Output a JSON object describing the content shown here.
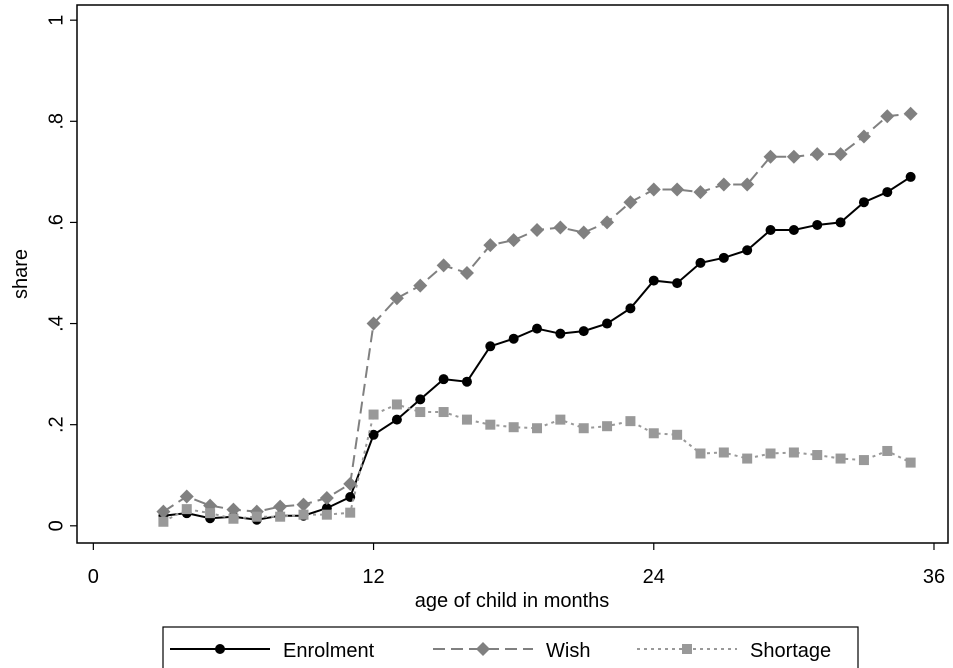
{
  "chart_data": {
    "type": "line",
    "x_label": "age of child in months",
    "y_label": "share",
    "x": [
      3,
      4,
      5,
      6,
      7,
      8,
      9,
      10,
      11,
      12,
      13,
      14,
      15,
      16,
      17,
      18,
      19,
      20,
      21,
      22,
      23,
      24,
      25,
      26,
      27,
      28,
      29,
      30,
      31,
      32,
      33,
      34,
      35
    ],
    "series": [
      {
        "name": "Enrolment",
        "color": "#000000",
        "dash": "solid",
        "marker": "circle",
        "values": [
          0.02,
          0.025,
          0.015,
          0.018,
          0.012,
          0.02,
          0.02,
          0.035,
          0.057,
          0.18,
          0.21,
          0.25,
          0.29,
          0.285,
          0.355,
          0.37,
          0.39,
          0.38,
          0.385,
          0.4,
          0.43,
          0.485,
          0.48,
          0.52,
          0.53,
          0.545,
          0.585,
          0.585,
          0.595,
          0.6,
          0.64,
          0.66,
          0.69
        ]
      },
      {
        "name": "Wish",
        "color": "#808080",
        "dash": "dashed",
        "marker": "diamond",
        "values": [
          0.028,
          0.058,
          0.04,
          0.032,
          0.028,
          0.038,
          0.042,
          0.055,
          0.083,
          0.4,
          0.45,
          0.475,
          0.515,
          0.5,
          0.555,
          0.565,
          0.585,
          0.59,
          0.58,
          0.6,
          0.64,
          0.665,
          0.665,
          0.66,
          0.675,
          0.675,
          0.73,
          0.73,
          0.735,
          0.735,
          0.77,
          0.81,
          0.815
        ]
      },
      {
        "name": "Shortage",
        "color": "#999999",
        "dash": "dotted",
        "marker": "square",
        "values": [
          0.008,
          0.033,
          0.025,
          0.014,
          0.018,
          0.018,
          0.022,
          0.022,
          0.026,
          0.22,
          0.24,
          0.225,
          0.225,
          0.21,
          0.2,
          0.195,
          0.193,
          0.21,
          0.193,
          0.197,
          0.207,
          0.183,
          0.18,
          0.143,
          0.145,
          0.133,
          0.143,
          0.145,
          0.14,
          0.133,
          0.13,
          0.148,
          0.125
        ]
      }
    ],
    "xlim": [
      -0.7,
      36.6
    ],
    "ylim": [
      -0.034,
      1.03
    ],
    "xticks": [
      0,
      12,
      24,
      36
    ],
    "yticks": [
      0,
      {
        "value": 0.2,
        "label": ".2"
      },
      {
        "value": 0.4,
        "label": ".4"
      },
      {
        "value": 0.6,
        "label": ".6"
      },
      {
        "value": 0.8,
        "label": ".8"
      },
      1
    ],
    "legend": "bottom"
  }
}
